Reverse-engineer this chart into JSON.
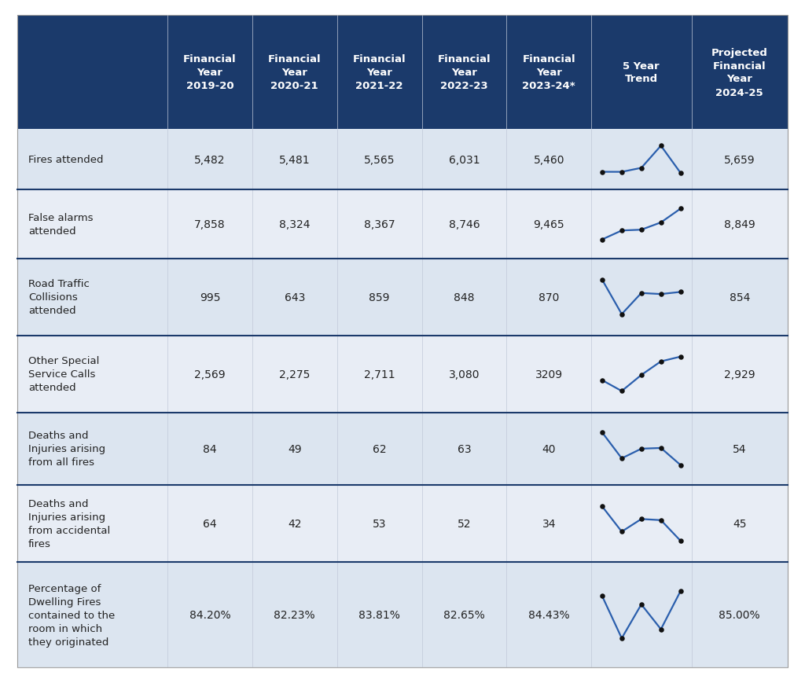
{
  "header_bg": "#1b3a6b",
  "header_text": "#ffffff",
  "row_bg_odd": "#dce5f0",
  "row_bg_even": "#e8edf5",
  "row_text": "#222222",
  "divider_color": "#1b3a6b",
  "sparkline_line_color": "#2b5fad",
  "sparkline_dot_color": "#111111",
  "col_headers": [
    "Financial\nYear\n2019-20",
    "Financial\nYear\n2020-21",
    "Financial\nYear\n2021-22",
    "Financial\nYear\n2022-23",
    "Financial\nYear\n2023-24*",
    "5 Year\nTrend",
    "Projected\nFinancial\nYear\n2024-25"
  ],
  "row_labels": [
    "Fires attended",
    "False alarms\nattended",
    "Road Traffic\nCollisions\nattended",
    "Other Special\nService Calls\nattended",
    "Deaths and\nInjuries arising\nfrom all fires",
    "Deaths and\nInjuries arising\nfrom accidental\nfires",
    "Percentage of\nDwelling Fires\ncontained to the\nroom in which\nthey originated"
  ],
  "year_data": [
    [
      "5,482",
      "5,481",
      "5,565",
      "6,031",
      "5,460"
    ],
    [
      "7,858",
      "8,324",
      "8,367",
      "8,746",
      "9,465"
    ],
    [
      "995",
      "643",
      "859",
      "848",
      "870"
    ],
    [
      "2,569",
      "2,275",
      "2,711",
      "3,080",
      "3209"
    ],
    [
      "84",
      "49",
      "62",
      "63",
      "40"
    ],
    [
      "64",
      "42",
      "53",
      "52",
      "34"
    ],
    [
      "84.20%",
      "82.23%",
      "83.81%",
      "82.65%",
      "84.43%"
    ]
  ],
  "projected_data": [
    "5,659",
    "8,849",
    "854",
    "2,929",
    "54",
    "45",
    "85.00%"
  ],
  "sparkline_values": [
    [
      5482,
      5481,
      5565,
      6031,
      5460
    ],
    [
      7858,
      8324,
      8367,
      8746,
      9465
    ],
    [
      995,
      643,
      859,
      848,
      870
    ],
    [
      2569,
      2275,
      2711,
      3080,
      3209
    ],
    [
      84,
      49,
      62,
      63,
      40
    ],
    [
      64,
      42,
      53,
      52,
      34
    ],
    [
      84.2,
      82.23,
      83.81,
      82.65,
      84.43
    ]
  ],
  "figure_width": 10.24,
  "figure_height": 8.7
}
